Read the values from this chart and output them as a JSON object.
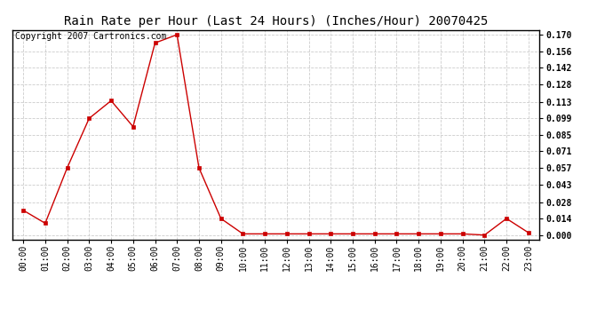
{
  "title": "Rain Rate per Hour (Last 24 Hours) (Inches/Hour) 20070425",
  "copyright_text": "Copyright 2007 Cartronics.com",
  "x_labels": [
    "00:00",
    "01:00",
    "02:00",
    "03:00",
    "04:00",
    "05:00",
    "06:00",
    "07:00",
    "08:00",
    "09:00",
    "10:00",
    "11:00",
    "12:00",
    "13:00",
    "14:00",
    "15:00",
    "16:00",
    "17:00",
    "18:00",
    "19:00",
    "20:00",
    "21:00",
    "22:00",
    "23:00"
  ],
  "y_values": [
    0.021,
    0.01,
    0.057,
    0.099,
    0.114,
    0.092,
    0.163,
    0.17,
    0.057,
    0.014,
    0.001,
    0.001,
    0.001,
    0.001,
    0.001,
    0.001,
    0.001,
    0.001,
    0.001,
    0.001,
    0.001,
    0.0,
    0.014,
    0.002
  ],
  "y_ticks": [
    0.0,
    0.014,
    0.028,
    0.043,
    0.057,
    0.071,
    0.085,
    0.099,
    0.113,
    0.128,
    0.142,
    0.156,
    0.17
  ],
  "ylim_min": -0.004,
  "ylim_max": 0.174,
  "line_color": "#cc0000",
  "marker": "s",
  "marker_size": 2.5,
  "grid_color": "#cccccc",
  "background_color": "#ffffff",
  "title_fontsize": 10,
  "copyright_fontsize": 7,
  "tick_fontsize": 7,
  "border_color": "#000000"
}
